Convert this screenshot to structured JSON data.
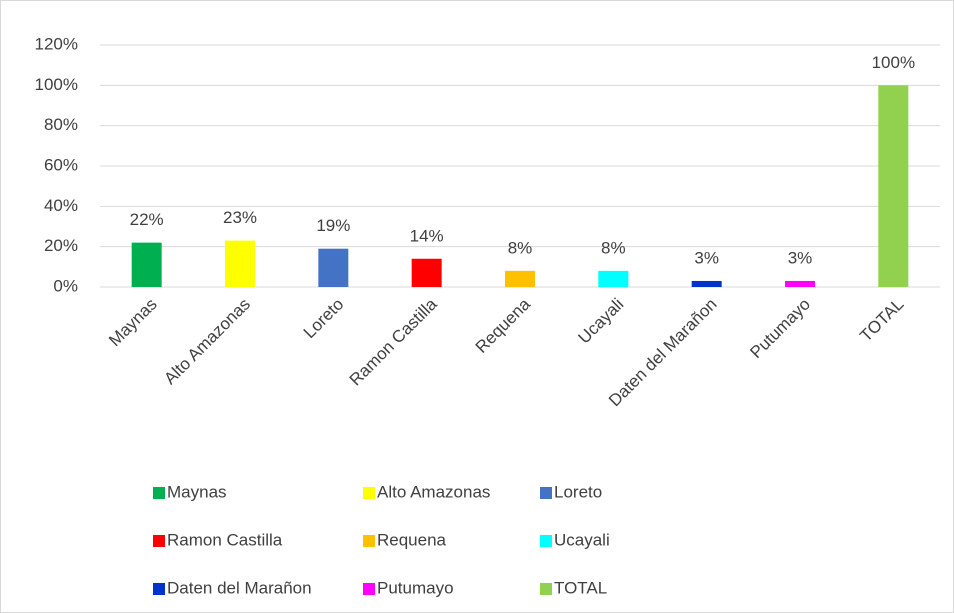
{
  "chart_data": {
    "type": "bar",
    "categories": [
      "Maynas",
      "Alto Amazonas",
      "Loreto",
      "Ramon Castilla",
      "Requena",
      "Ucayali",
      "Daten del Marañon",
      "Putumayo",
      "TOTAL"
    ],
    "values": [
      22,
      23,
      19,
      14,
      8,
      8,
      3,
      3,
      100
    ],
    "value_labels": [
      "22%",
      "23%",
      "19%",
      "14%",
      "8%",
      "8%",
      "3%",
      "3%",
      "100%"
    ],
    "colors": [
      "#00b050",
      "#ffff00",
      "#4472c4",
      "#ff0000",
      "#ffc000",
      "#00ffff",
      "#0033cc",
      "#ff00ff",
      "#92d050"
    ],
    "ylim": [
      0,
      120
    ],
    "yticks": [
      {
        "value": 0,
        "label": "0%"
      },
      {
        "value": 20,
        "label": "20%"
      },
      {
        "value": 40,
        "label": "40%"
      },
      {
        "value": 60,
        "label": "60%"
      },
      {
        "value": 80,
        "label": "80%"
      },
      {
        "value": 100,
        "label": "100%"
      },
      {
        "value": 120,
        "label": "120%"
      }
    ],
    "grid": true,
    "legend": "bottom"
  }
}
